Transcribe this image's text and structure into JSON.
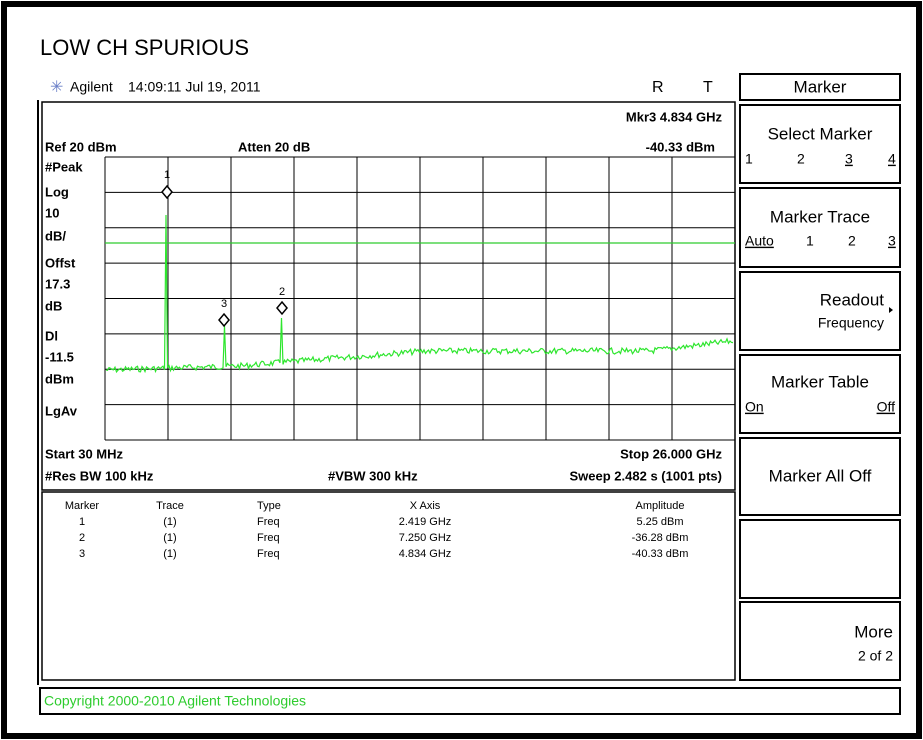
{
  "title": "LOW CH SPURIOUS",
  "header": {
    "brand": "Agilent",
    "timestamp": "14:09:11  Jul 19, 2011",
    "flags": [
      "R",
      "T"
    ]
  },
  "softkeys": {
    "menu": "Marker",
    "keys": [
      {
        "label": "Select Marker",
        "options": [
          "1",
          "2",
          "3",
          "4"
        ]
      },
      {
        "label": "Marker Trace",
        "options": [
          "Auto",
          "1",
          "2",
          "3"
        ]
      },
      {
        "label": "Readout",
        "sub": "Frequency"
      },
      {
        "label": "Marker Table",
        "options": [
          "On",
          "Off"
        ]
      },
      {
        "label": "Marker All Off"
      },
      {
        "label": "More",
        "sub": "2 of 2"
      }
    ]
  },
  "display": {
    "active_marker": "Mkr3  4.834 GHz",
    "active_marker_amplitude": "-40.33 dBm",
    "ref_level": "Ref 20 dBm",
    "attenuation": "Atten 20 dB",
    "left_labels": [
      "#Peak",
      "Log",
      "10",
      "dB/",
      "Offst",
      "17.3",
      "dB",
      "Dl",
      "-11.5",
      "dBm",
      "LgAv"
    ],
    "marker_labels": [
      "1",
      "2",
      "3"
    ],
    "start": "Start 30 MHz",
    "stop": "Stop 26.000 GHz",
    "res_bw": "#Res BW 100 kHz",
    "vbw": "#VBW 300 kHz",
    "sweep": "Sweep 2.482 s (1001 pts)"
  },
  "marker_table": {
    "columns": [
      "Marker",
      "Trace",
      "Type",
      "X Axis",
      "Amplitude"
    ],
    "rows": [
      [
        "1",
        "(1)",
        "Freq",
        "2.419 GHz",
        "5.25 dBm"
      ],
      [
        "2",
        "(1)",
        "Freq",
        "7.250 GHz",
        "-36.28 dBm"
      ],
      [
        "3",
        "(1)",
        "Freq",
        "4.834 GHz",
        "-40.33 dBm"
      ]
    ]
  },
  "copyright": "Copyright 2000-2010 Agilent Technologies"
}
